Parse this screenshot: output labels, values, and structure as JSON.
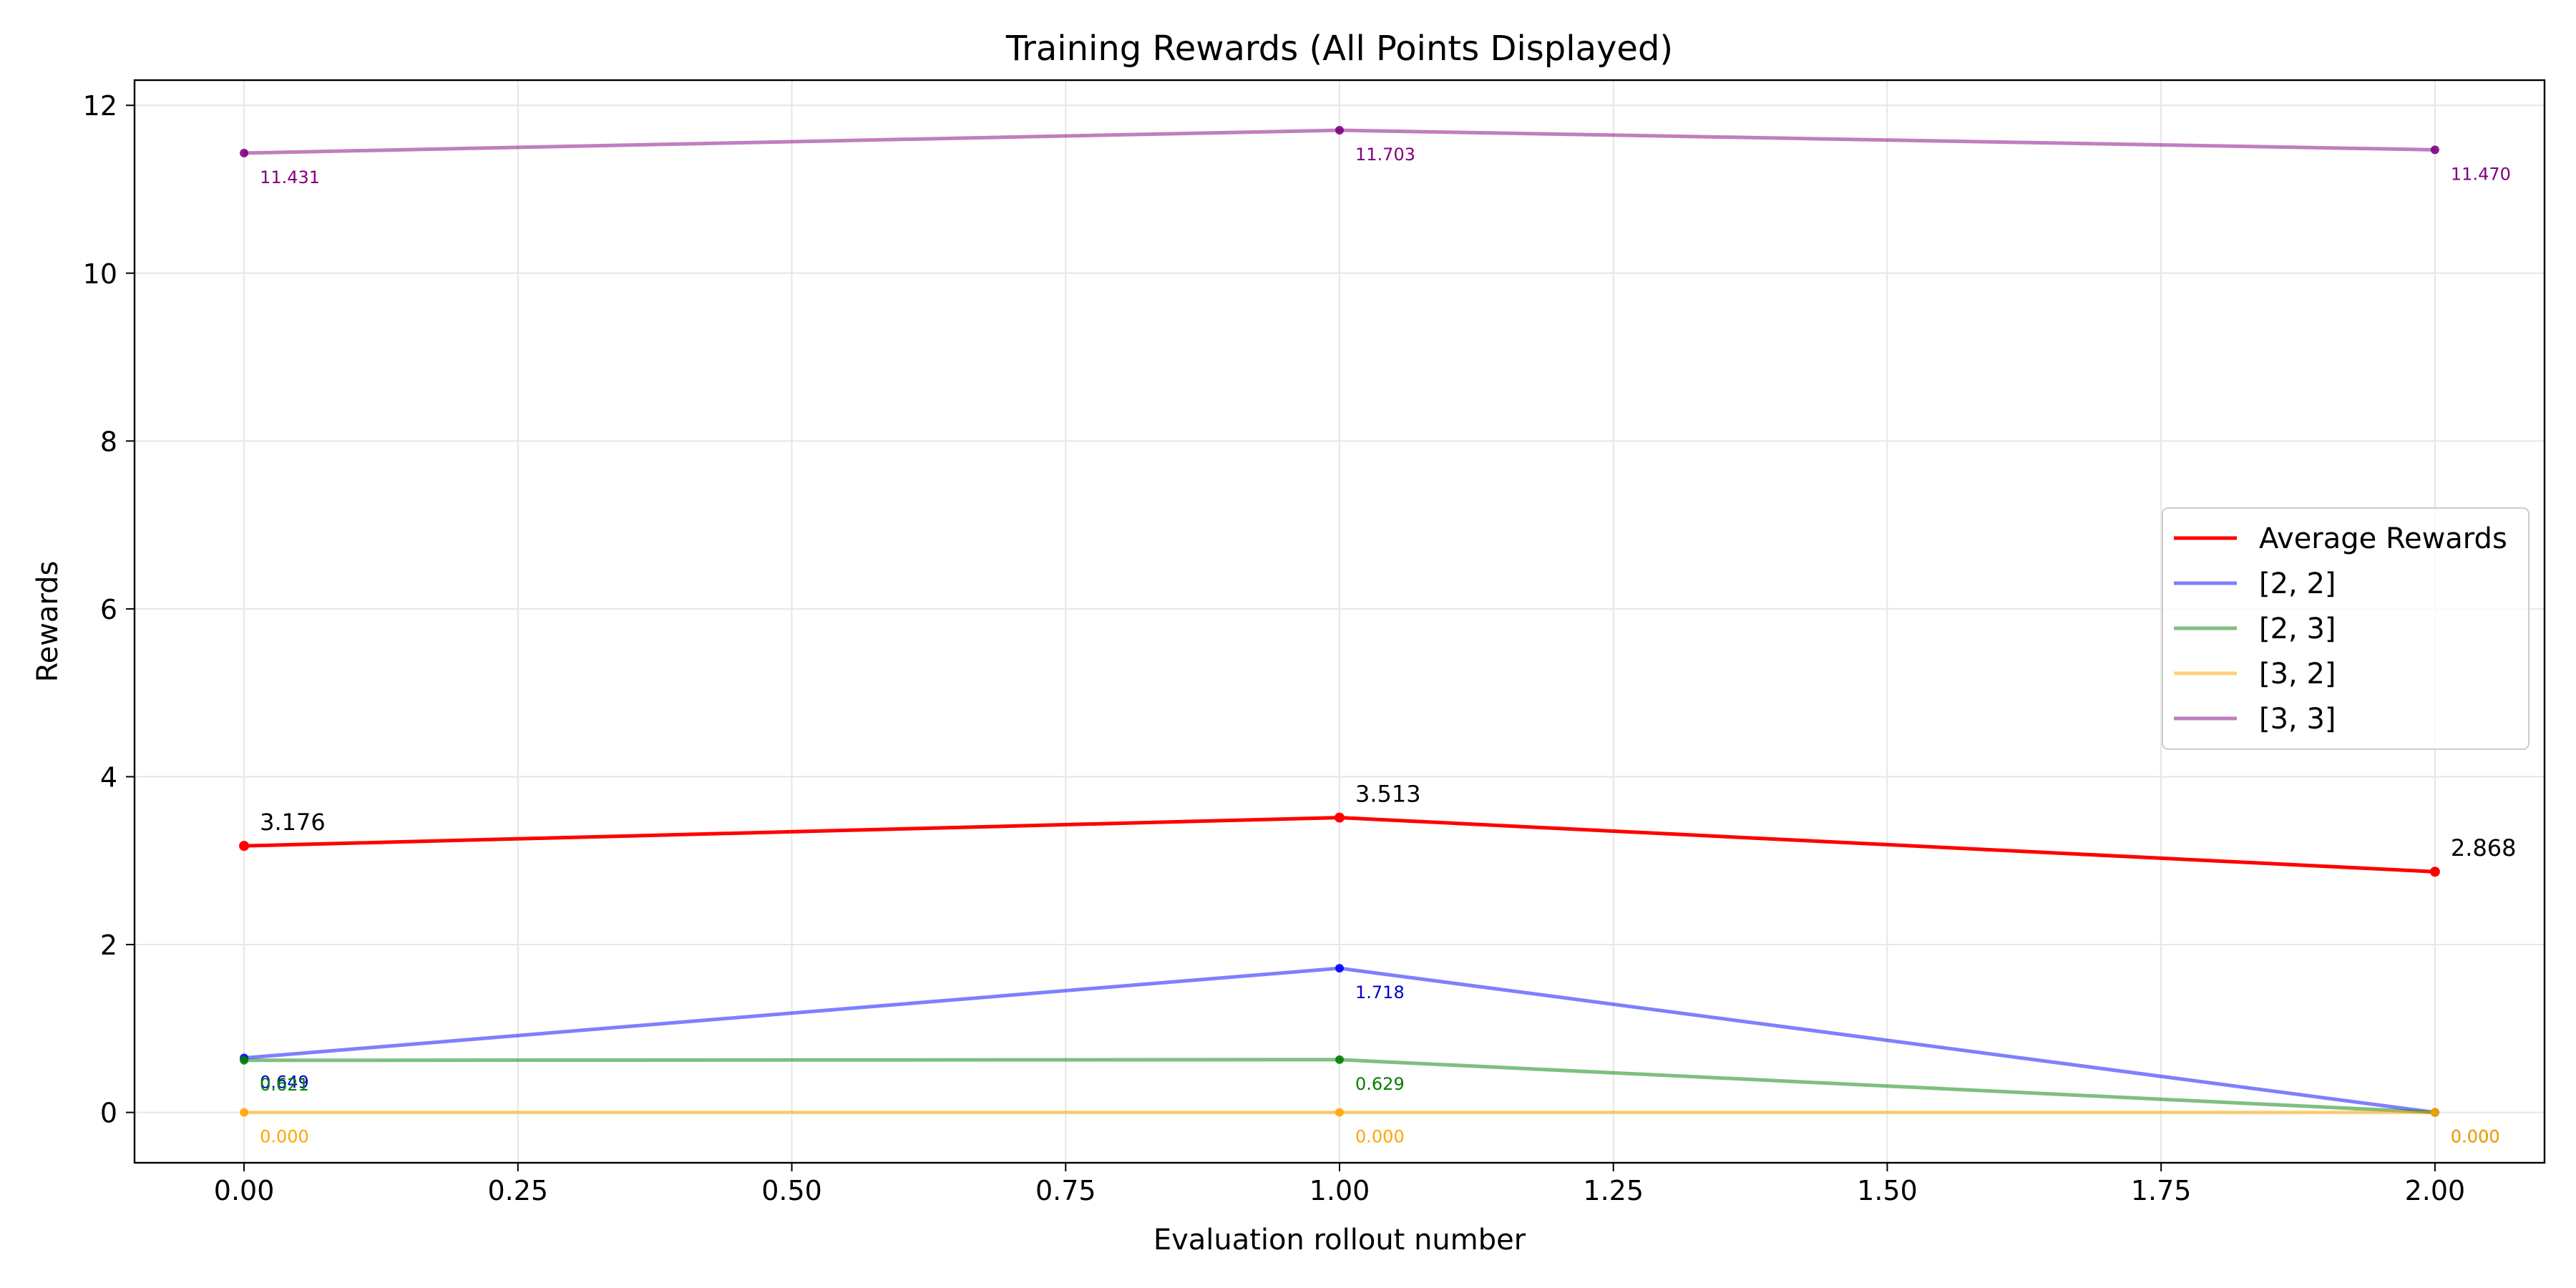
{
  "chart_data": {
    "type": "line",
    "title": "Training Rewards (All Points Displayed)",
    "xlabel": "Evaluation rollout number",
    "ylabel": "Rewards",
    "xlim": [
      -0.1,
      2.1
    ],
    "ylim": [
      -0.6,
      12.3
    ],
    "xticks": [
      0.0,
      0.25,
      0.5,
      0.75,
      1.0,
      1.25,
      1.5,
      1.75,
      2.0
    ],
    "xtick_labels": [
      "0.00",
      "0.25",
      "0.50",
      "0.75",
      "1.00",
      "1.25",
      "1.50",
      "1.75",
      "2.00"
    ],
    "yticks": [
      0,
      2,
      4,
      6,
      8,
      10,
      12
    ],
    "ytick_labels": [
      "0",
      "2",
      "4",
      "6",
      "8",
      "10",
      "12"
    ],
    "grid": true,
    "legend_position": "center-right",
    "x": [
      0,
      1,
      2
    ],
    "series": [
      {
        "name": "Average Rewards",
        "color": "#ff0000",
        "opacity": 1.0,
        "values": [
          3.176,
          3.513,
          2.868
        ],
        "labels": [
          "3.176",
          "3.513",
          "2.868"
        ],
        "label_color": "#000000",
        "label_position": "above"
      },
      {
        "name": "[2, 2]",
        "color": "#0000ff",
        "opacity": 0.5,
        "values": [
          0.649,
          1.718,
          0.0
        ],
        "labels": [
          "0.649",
          "1.718",
          "0.000"
        ],
        "label_color": "#0000cc",
        "label_position": "below"
      },
      {
        "name": "[2, 3]",
        "color": "#008000",
        "opacity": 0.5,
        "values": [
          0.621,
          0.629,
          0.0
        ],
        "labels": [
          "0.621",
          "0.629",
          "0.000"
        ],
        "label_color": "#008000",
        "label_position": "below"
      },
      {
        "name": "[3, 2]",
        "color": "#ffa500",
        "opacity": 0.5,
        "values": [
          0.0,
          0.0,
          0.0
        ],
        "labels": [
          "0.000",
          "0.000",
          "0.000"
        ],
        "label_color": "#ffa500",
        "label_position": "below"
      },
      {
        "name": "[3, 3]",
        "color": "#800080",
        "opacity": 0.5,
        "values": [
          11.431,
          11.703,
          11.47
        ],
        "labels": [
          "11.431",
          "11.703",
          "11.470"
        ],
        "label_color": "#800080",
        "label_position": "below"
      }
    ]
  }
}
